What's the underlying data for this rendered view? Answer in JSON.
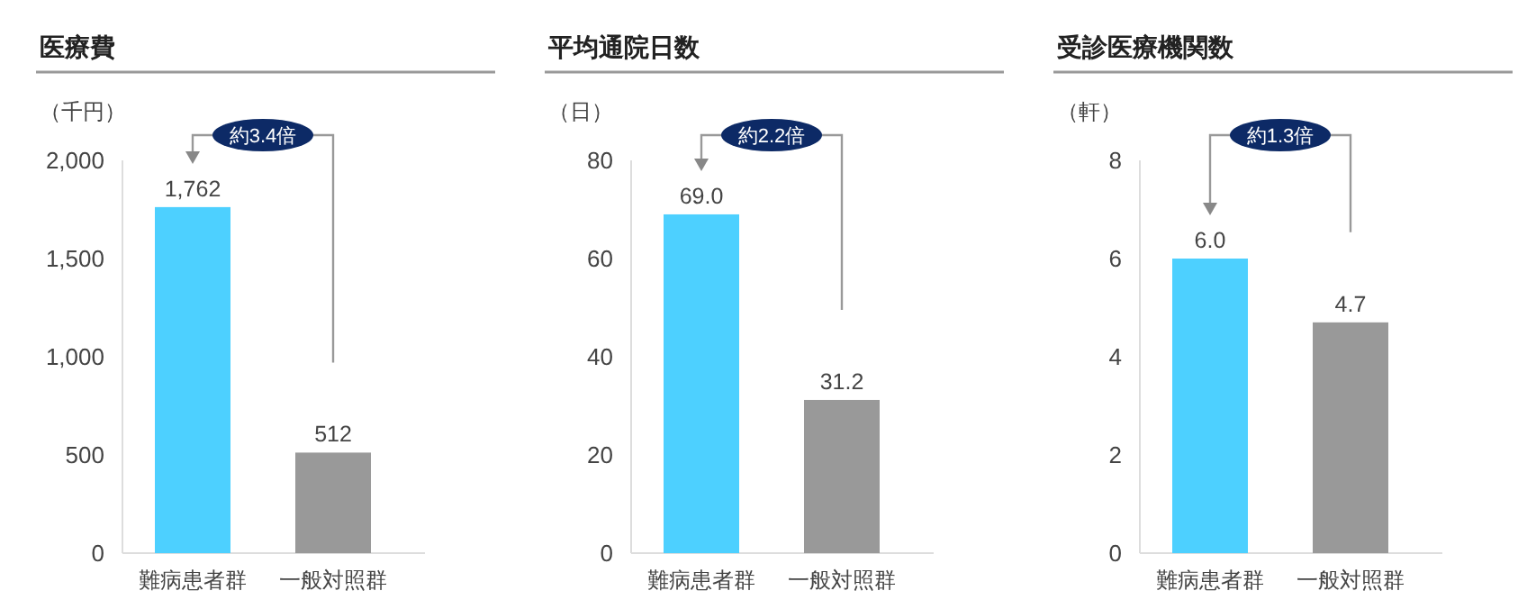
{
  "chart_data": [
    {
      "type": "bar",
      "title": "医療費",
      "ylabel": "（千円）",
      "categories": [
        "難病患者群",
        "一般対照群"
      ],
      "values": [
        1762,
        512
      ],
      "colors": [
        "#4dd0ff",
        "#999999"
      ],
      "value_labels": [
        "1,762",
        "512"
      ],
      "ylim": [
        0,
        2000
      ],
      "yticks": [
        0,
        500,
        {
          "value": 1000,
          "label": "1,000"
        },
        {
          "value": 1500,
          "label": "1,500"
        },
        {
          "value": 2000,
          "label": "2,000"
        }
      ],
      "annotations": [
        "約3.4倍"
      ]
    },
    {
      "type": "bar",
      "title": "平均通院日数",
      "ylabel": "（日）",
      "categories": [
        "難病患者群",
        "一般対照群"
      ],
      "values": [
        69.0,
        31.2
      ],
      "colors": [
        "#4dd0ff",
        "#999999"
      ],
      "value_labels": [
        "69.0",
        "31.2"
      ],
      "ylim": [
        0,
        80
      ],
      "yticks": [
        0,
        20,
        40,
        60,
        80
      ],
      "annotations": [
        "約2.2倍"
      ]
    },
    {
      "type": "bar",
      "title": "受診医療機関数",
      "ylabel": "（軒）",
      "categories": [
        "難病患者群",
        "一般対照群"
      ],
      "values": [
        6.0,
        4.7
      ],
      "colors": [
        "#4dd0ff",
        "#999999"
      ],
      "value_labels": [
        "6.0",
        "4.7"
      ],
      "ylim": [
        0,
        8
      ],
      "yticks": [
        0,
        2,
        4,
        6,
        8
      ],
      "annotations": [
        "約1.3倍"
      ]
    }
  ]
}
